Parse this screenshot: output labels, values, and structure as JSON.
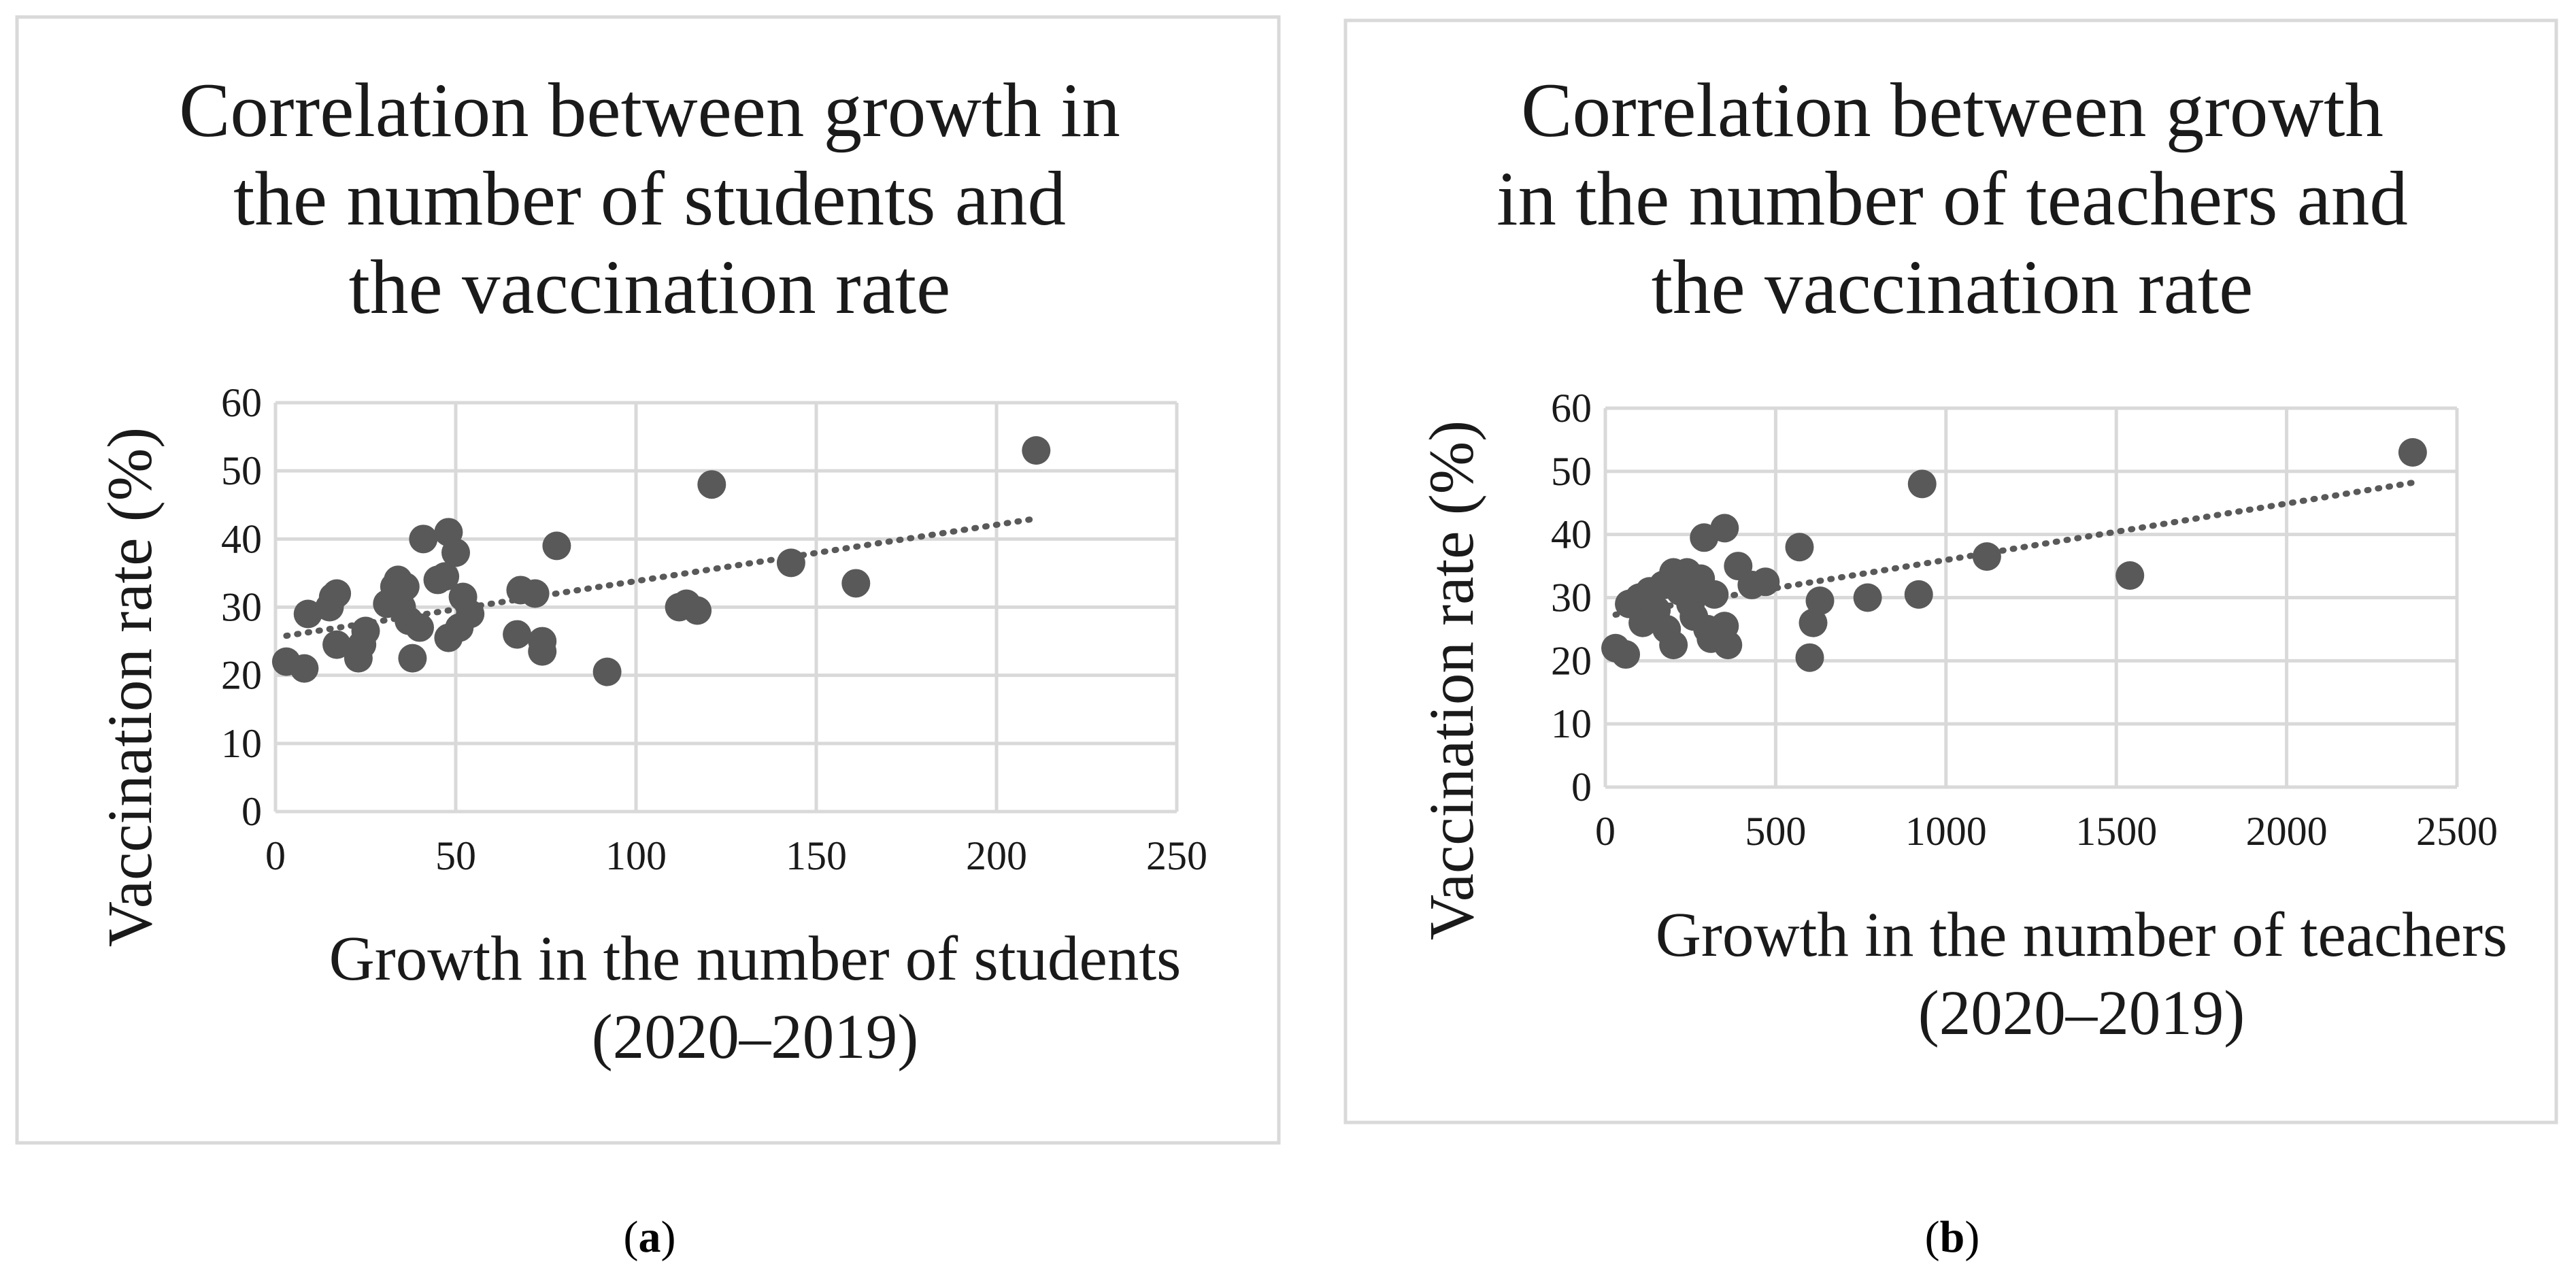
{
  "colors": {
    "marker": "#595959",
    "trend": "#595959",
    "grid": "#d9d9d9",
    "frame": "#d9d9d9",
    "text": "#1a1a1a"
  },
  "chart_data": [
    {
      "type": "scatter",
      "title_lines": [
        "Correlation between growth in",
        "the number of students and",
        "the vaccination rate"
      ],
      "xlabel_lines": [
        "Growth in the number of students",
        "(2020–2019)"
      ],
      "ylabel": "Vaccination rate (%)",
      "xlim": [
        0,
        250
      ],
      "ylim": [
        0,
        60
      ],
      "xticks": [
        0,
        50,
        100,
        150,
        200,
        250
      ],
      "yticks": [
        0,
        10,
        20,
        30,
        40,
        50,
        60
      ],
      "trendline": {
        "style": "dotted",
        "x": [
          3,
          211
        ],
        "y": [
          25.8,
          43.0
        ]
      },
      "points": [
        [
          3,
          22
        ],
        [
          8,
          21
        ],
        [
          9,
          29
        ],
        [
          15,
          30
        ],
        [
          16,
          31.5
        ],
        [
          17,
          32
        ],
        [
          17,
          24.5
        ],
        [
          23,
          22.5
        ],
        [
          24,
          24.5
        ],
        [
          25,
          26.5
        ],
        [
          31,
          30.5
        ],
        [
          33,
          33
        ],
        [
          34,
          34
        ],
        [
          35,
          30
        ],
        [
          36,
          33
        ],
        [
          37,
          28
        ],
        [
          38,
          22.5
        ],
        [
          40,
          27
        ],
        [
          41,
          40
        ],
        [
          45,
          34
        ],
        [
          47,
          34.5
        ],
        [
          48,
          41
        ],
        [
          48,
          25.5
        ],
        [
          50,
          38
        ],
        [
          51,
          27
        ],
        [
          52,
          31.5
        ],
        [
          54,
          29
        ],
        [
          67,
          26
        ],
        [
          68,
          32.5
        ],
        [
          72,
          32
        ],
        [
          74,
          25
        ],
        [
          74,
          23.5
        ],
        [
          78,
          39
        ],
        [
          92,
          20.5
        ],
        [
          112,
          30
        ],
        [
          114,
          30.5
        ],
        [
          117,
          29.5
        ],
        [
          121,
          48
        ],
        [
          143,
          36.5
        ],
        [
          161,
          33.5
        ],
        [
          211,
          53
        ]
      ],
      "caption": "a"
    },
    {
      "type": "scatter",
      "title_lines": [
        "Correlation between growth",
        "in the number of teachers and",
        "the vaccination rate"
      ],
      "xlabel_lines": [
        "Growth in the number of teachers",
        "(2020–2019)"
      ],
      "ylabel": "Vaccination rate (%)",
      "xlim": [
        0,
        2500
      ],
      "ylim": [
        0,
        60
      ],
      "xticks": [
        0,
        500,
        1000,
        1500,
        2000,
        2500
      ],
      "yticks": [
        0,
        10,
        20,
        30,
        40,
        50,
        60
      ],
      "trendline": {
        "style": "dotted",
        "x": [
          30,
          2370
        ],
        "y": [
          27.3,
          48.2
        ]
      },
      "points": [
        [
          30,
          22
        ],
        [
          60,
          21
        ],
        [
          70,
          29
        ],
        [
          100,
          30
        ],
        [
          110,
          26
        ],
        [
          130,
          31
        ],
        [
          150,
          28
        ],
        [
          170,
          32
        ],
        [
          180,
          25
        ],
        [
          200,
          34
        ],
        [
          200,
          22.5
        ],
        [
          220,
          31
        ],
        [
          240,
          34
        ],
        [
          250,
          29
        ],
        [
          260,
          27
        ],
        [
          270,
          31.5
        ],
        [
          280,
          33
        ],
        [
          290,
          39.5
        ],
        [
          300,
          25
        ],
        [
          310,
          23.5
        ],
        [
          320,
          30.5
        ],
        [
          350,
          41
        ],
        [
          350,
          25.5
        ],
        [
          360,
          22.5
        ],
        [
          390,
          35
        ],
        [
          430,
          32
        ],
        [
          470,
          32.5
        ],
        [
          570,
          38
        ],
        [
          600,
          20.5
        ],
        [
          610,
          26
        ],
        [
          630,
          29.5
        ],
        [
          770,
          30
        ],
        [
          920,
          30.5
        ],
        [
          930,
          48
        ],
        [
          1120,
          36.5
        ],
        [
          1540,
          33.5
        ],
        [
          2370,
          53
        ]
      ],
      "caption": "b"
    }
  ]
}
